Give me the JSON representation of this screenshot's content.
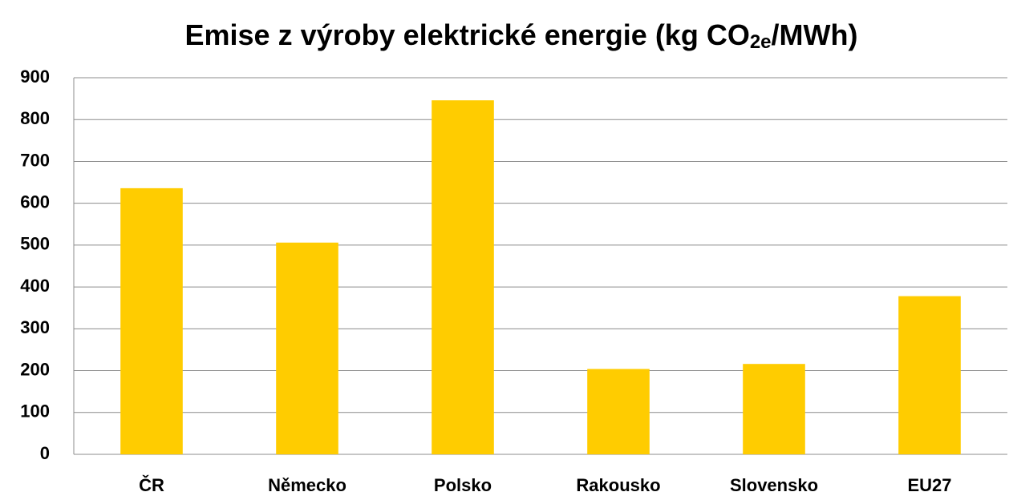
{
  "chart_data": {
    "type": "bar",
    "title": [
      "Emise z výroby elektrické energie (kg CO",
      "2e",
      "/MWh)"
    ],
    "categories": [
      "ČR",
      "Německo",
      "Polsko",
      "Rakousko",
      "Slovensko",
      "EU27"
    ],
    "values": [
      636,
      506,
      846,
      204,
      216,
      378
    ],
    "color": "#ffcc00",
    "ylim": [
      0,
      900
    ],
    "yticks": [
      0,
      100,
      200,
      300,
      400,
      500,
      600,
      700,
      800,
      900
    ],
    "grid": true
  }
}
